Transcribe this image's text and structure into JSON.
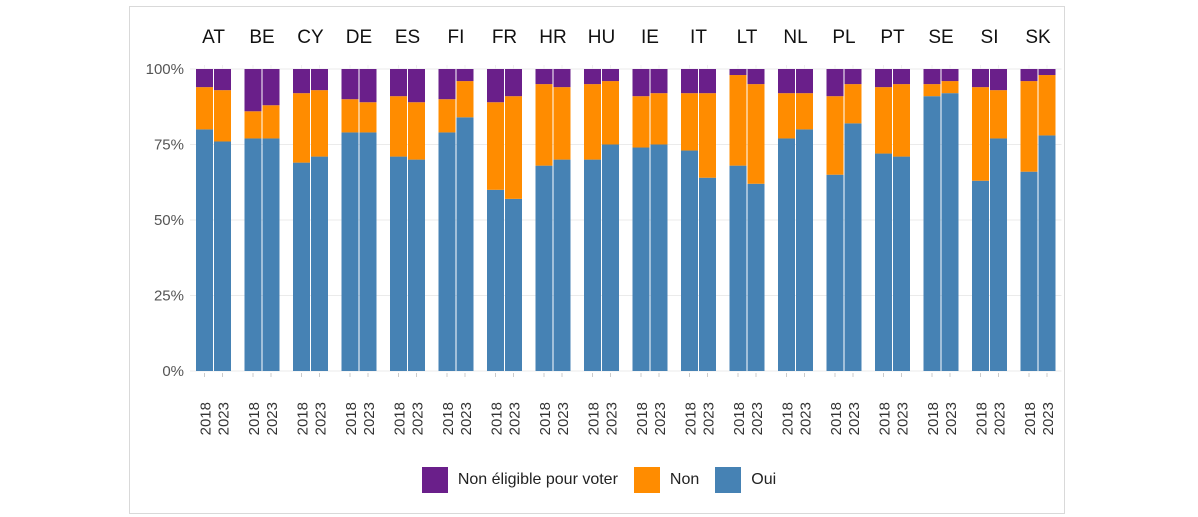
{
  "chart_data": {
    "type": "bar",
    "stacked": true,
    "facet_by": "country",
    "facets": [
      "AT",
      "BE",
      "CY",
      "DE",
      "ES",
      "FI",
      "FR",
      "HR",
      "HU",
      "IE",
      "IT",
      "LT",
      "NL",
      "PL",
      "PT",
      "SE",
      "SI",
      "SK"
    ],
    "years": [
      "2018",
      "2023"
    ],
    "series": [
      {
        "name": "Oui",
        "color": "#4682b4",
        "values": [
          [
            80,
            76
          ],
          [
            77,
            77
          ],
          [
            69,
            71
          ],
          [
            79,
            79
          ],
          [
            71,
            70
          ],
          [
            79,
            84
          ],
          [
            60,
            57
          ],
          [
            68,
            70
          ],
          [
            70,
            75
          ],
          [
            74,
            75
          ],
          [
            73,
            64
          ],
          [
            68,
            62
          ],
          [
            77,
            80
          ],
          [
            65,
            82
          ],
          [
            72,
            71
          ],
          [
            91,
            92
          ],
          [
            63,
            77
          ],
          [
            66,
            78
          ]
        ]
      },
      {
        "name": "Non",
        "color": "#ff8c00",
        "values": [
          [
            14,
            17
          ],
          [
            9,
            11
          ],
          [
            23,
            22
          ],
          [
            11,
            10
          ],
          [
            20,
            19
          ],
          [
            11,
            12
          ],
          [
            29,
            34
          ],
          [
            27,
            24
          ],
          [
            25,
            21
          ],
          [
            17,
            17
          ],
          [
            19,
            28
          ],
          [
            30,
            33
          ],
          [
            15,
            12
          ],
          [
            26,
            13
          ],
          [
            22,
            24
          ],
          [
            4,
            4
          ],
          [
            31,
            16
          ],
          [
            30,
            20
          ]
        ]
      },
      {
        "name": "Non éligible pour voter",
        "color": "#6a1f8a",
        "values": [
          [
            6,
            7
          ],
          [
            14,
            12
          ],
          [
            8,
            7
          ],
          [
            10,
            11
          ],
          [
            9,
            11
          ],
          [
            10,
            4
          ],
          [
            11,
            9
          ],
          [
            5,
            6
          ],
          [
            5,
            4
          ],
          [
            9,
            8
          ],
          [
            8,
            8
          ],
          [
            2,
            5
          ],
          [
            8,
            8
          ],
          [
            9,
            5
          ],
          [
            6,
            5
          ],
          [
            5,
            4
          ],
          [
            6,
            7
          ],
          [
            4,
            2
          ]
        ]
      }
    ],
    "yticks": [
      "0%",
      "25%",
      "50%",
      "75%",
      "100%"
    ],
    "ylim": [
      0,
      100
    ],
    "xlabel": "",
    "ylabel": "",
    "legend_position": "bottom"
  },
  "legend": [
    {
      "label": "Non éligible pour voter",
      "color": "#6a1f8a"
    },
    {
      "label": "Non",
      "color": "#ff8c00"
    },
    {
      "label": "Oui",
      "color": "#4682b4"
    }
  ]
}
